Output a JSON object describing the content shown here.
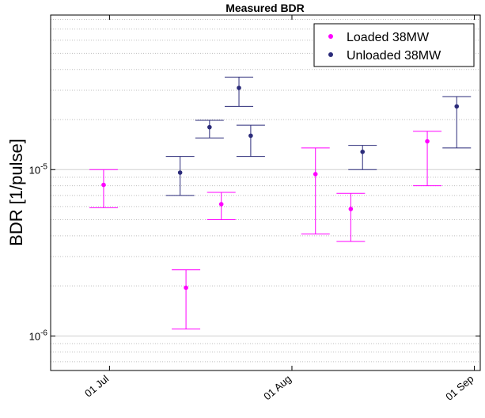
{
  "chart_data": {
    "type": "scatter",
    "title": "Measured BDR",
    "xlabel": "",
    "ylabel": "BDR [1/pulse]",
    "yscale": "log",
    "ylim": [
      6.2e-07,
      8.5e-05
    ],
    "xlim": [
      "2024-06-21",
      "2024-09-02"
    ],
    "x_ticks": [
      {
        "date": "2024-07-01",
        "label": "01 Jul"
      },
      {
        "date": "2024-08-01",
        "label": "01 Aug"
      },
      {
        "date": "2024-09-01",
        "label": "01 Sep"
      }
    ],
    "y_ticks": [
      {
        "value": 1e-06,
        "base": "10",
        "exp": "-6"
      },
      {
        "value": 1e-05,
        "base": "10",
        "exp": "-5"
      }
    ],
    "grid": true,
    "legend_position": "top-right",
    "series": [
      {
        "name": "Loaded 38MW",
        "color": "#ff00ff",
        "points": [
          {
            "x": "2024-06-30",
            "y": 8.1e-06,
            "lo": 5.9e-06,
            "hi": 1e-05
          },
          {
            "x": "2024-07-14",
            "y": 1.95e-06,
            "lo": 1.1e-06,
            "hi": 2.5e-06
          },
          {
            "x": "2024-07-20",
            "y": 6.2e-06,
            "lo": 5e-06,
            "hi": 7.3e-06
          },
          {
            "x": "2024-08-05",
            "y": 9.4e-06,
            "lo": 4.1e-06,
            "hi": 1.35e-05
          },
          {
            "x": "2024-08-11",
            "y": 5.8e-06,
            "lo": 3.7e-06,
            "hi": 7.2e-06
          },
          {
            "x": "2024-08-24",
            "y": 1.48e-05,
            "lo": 8e-06,
            "hi": 1.7e-05
          }
        ]
      },
      {
        "name": "Unloaded 38MW",
        "color": "#2b2b7a",
        "points": [
          {
            "x": "2024-07-13",
            "y": 9.6e-06,
            "lo": 7e-06,
            "hi": 1.2e-05
          },
          {
            "x": "2024-07-18",
            "y": 1.8e-05,
            "lo": 1.55e-05,
            "hi": 1.98e-05
          },
          {
            "x": "2024-07-23",
            "y": 3.1e-05,
            "lo": 2.4e-05,
            "hi": 3.6e-05
          },
          {
            "x": "2024-07-25",
            "y": 1.6e-05,
            "lo": 1.2e-05,
            "hi": 1.85e-05
          },
          {
            "x": "2024-08-13",
            "y": 1.28e-05,
            "lo": 1e-05,
            "hi": 1.4e-05
          },
          {
            "x": "2024-08-29",
            "y": 2.4e-05,
            "lo": 1.35e-05,
            "hi": 2.75e-05
          }
        ]
      }
    ]
  }
}
